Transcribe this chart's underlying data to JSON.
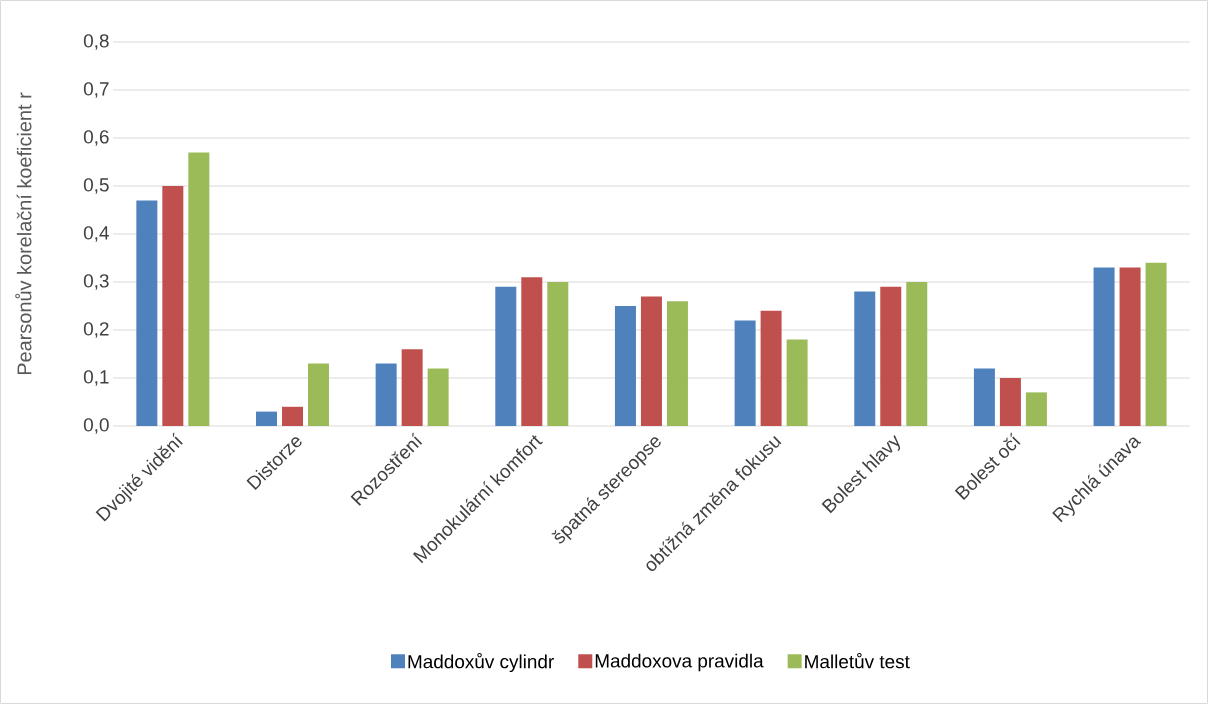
{
  "chart_data": {
    "type": "bar",
    "ylabel": "Pearsonův korelační koeficient r",
    "categories": [
      "Dvojité vidění",
      "Distorze",
      "Rozostření",
      "Monokulární komfort",
      "špatná stereopse",
      "obtížná změna fokusu",
      "Bolest hlavy",
      "Bolest očí",
      "Rychlá únava"
    ],
    "series": [
      {
        "name": "Maddoxův cylindr",
        "color": "#4f81bd",
        "values": [
          0.47,
          0.03,
          0.13,
          0.29,
          0.25,
          0.22,
          0.28,
          0.12,
          0.33
        ]
      },
      {
        "name": "Maddoxova pravidla",
        "color": "#c0504d",
        "values": [
          0.5,
          0.04,
          0.16,
          0.31,
          0.27,
          0.24,
          0.29,
          0.1,
          0.33
        ]
      },
      {
        "name": "Malletův test",
        "color": "#9bbb59",
        "values": [
          0.57,
          0.13,
          0.12,
          0.3,
          0.26,
          0.18,
          0.3,
          0.07,
          0.34
        ]
      }
    ],
    "ylim": [
      0,
      0.8
    ],
    "yticks": [
      {
        "value": 0,
        "label": "0,0"
      },
      {
        "value": 0.1,
        "label": "0,1"
      },
      {
        "value": 0.2,
        "label": "0,2"
      },
      {
        "value": 0.3,
        "label": "0,3"
      },
      {
        "value": 0.4,
        "label": "0,4"
      },
      {
        "value": 0.5,
        "label": "0,5"
      },
      {
        "value": 0.6,
        "label": "0,6"
      },
      {
        "value": 0.7,
        "label": "0,7"
      },
      {
        "value": 0.8,
        "label": "0,8"
      }
    ],
    "grid": "y",
    "legend": "bottom"
  }
}
